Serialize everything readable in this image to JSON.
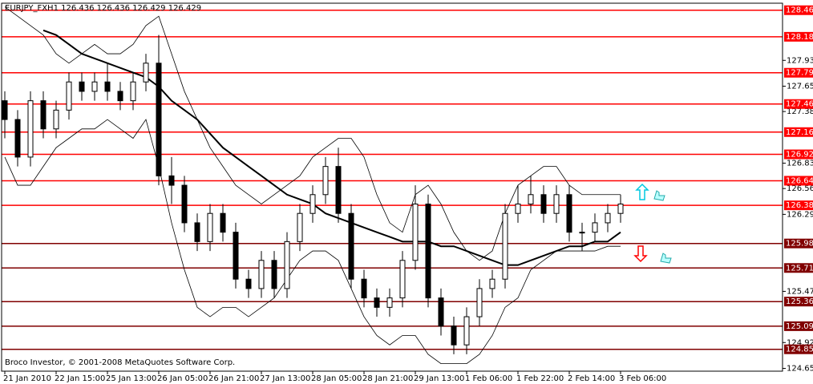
{
  "chart_data": {
    "type": "candlestick",
    "title": "EURJPY_FXH1  126.436 126.436 126.429 126.429",
    "footer": "Broco Investor, © 2001-2008 MetaQuotes Software Corp.",
    "categories": [
      "21 Jan 2010",
      null,
      null,
      null,
      "22 Jan 15:00",
      null,
      null,
      null,
      "25 Jan 13:00",
      null,
      null,
      null,
      "26 Jan 05:00",
      null,
      null,
      null,
      "26 Jan 21:00",
      null,
      null,
      null,
      "27 Jan 13:00",
      null,
      null,
      null,
      "28 Jan 05:00",
      null,
      null,
      null,
      "28 Jan 21:00",
      null,
      null,
      null,
      "29 Jan 13:00",
      null,
      null,
      null,
      "1 Feb 06:00",
      null,
      null,
      null,
      "1 Feb 22:00",
      null,
      null,
      null,
      "2 Feb 14:00",
      null,
      null,
      null,
      "3 Feb 06:00"
    ],
    "open": [
      127.5,
      127.3,
      126.9,
      127.5,
      127.2,
      127.4,
      127.7,
      127.6,
      127.7,
      127.6,
      127.5,
      127.7,
      127.9,
      126.7,
      126.6,
      126.2,
      126.0,
      126.3,
      126.1,
      125.6,
      125.5,
      125.8,
      125.5,
      126.0,
      126.3,
      126.5,
      126.8,
      126.3,
      125.6,
      125.4,
      125.3,
      125.4,
      125.8,
      126.4,
      125.4,
      125.1,
      124.9,
      125.2,
      125.5,
      125.6,
      126.3,
      126.4,
      126.5,
      126.3,
      126.5,
      126.1,
      126.1,
      126.2,
      126.3
    ],
    "high": [
      127.6,
      127.4,
      127.6,
      127.6,
      127.5,
      127.8,
      127.8,
      127.8,
      127.9,
      127.7,
      127.8,
      128.0,
      128.2,
      126.9,
      126.7,
      126.3,
      126.4,
      126.4,
      126.2,
      125.7,
      125.9,
      125.9,
      126.1,
      126.4,
      126.6,
      126.9,
      127.0,
      126.4,
      125.7,
      125.5,
      125.5,
      125.9,
      126.6,
      126.5,
      125.5,
      125.2,
      125.3,
      125.6,
      125.7,
      126.4,
      126.6,
      126.7,
      126.6,
      126.6,
      126.6,
      126.2,
      126.3,
      126.4,
      126.5
    ],
    "low": [
      127.1,
      126.8,
      126.8,
      127.1,
      127.1,
      127.3,
      127.5,
      127.5,
      127.5,
      127.4,
      127.4,
      127.6,
      126.6,
      126.4,
      126.1,
      125.9,
      125.9,
      126.0,
      125.5,
      125.4,
      125.4,
      125.4,
      125.4,
      125.9,
      126.2,
      126.4,
      126.2,
      125.5,
      125.3,
      125.2,
      125.2,
      125.3,
      125.7,
      125.3,
      125.0,
      124.8,
      124.8,
      125.1,
      125.4,
      125.5,
      126.2,
      126.3,
      126.2,
      126.2,
      126.0,
      125.9,
      126.0,
      126.1,
      126.2
    ],
    "close": [
      127.3,
      126.9,
      127.5,
      127.2,
      127.4,
      127.7,
      127.6,
      127.7,
      127.6,
      127.5,
      127.7,
      127.9,
      126.7,
      126.6,
      126.2,
      126.0,
      126.3,
      126.1,
      125.6,
      125.5,
      125.8,
      125.5,
      126.0,
      126.3,
      126.5,
      126.8,
      126.3,
      125.6,
      125.4,
      125.3,
      125.4,
      125.8,
      126.4,
      125.4,
      125.1,
      124.9,
      125.2,
      125.5,
      125.6,
      126.3,
      126.4,
      126.5,
      126.3,
      126.5,
      126.1,
      126.1,
      126.2,
      126.3,
      126.4
    ],
    "candle_color": "#000000",
    "series": [
      {
        "name": "MA",
        "color": "#000000",
        "values": [
          null,
          null,
          null,
          128.25,
          128.2,
          128.1,
          128.0,
          127.95,
          127.9,
          127.85,
          127.8,
          127.75,
          127.65,
          127.5,
          127.4,
          127.3,
          127.15,
          127.0,
          126.9,
          126.8,
          126.7,
          126.6,
          126.5,
          126.45,
          126.4,
          126.3,
          126.25,
          126.2,
          126.15,
          126.1,
          126.05,
          126.0,
          126.0,
          126.0,
          125.95,
          125.95,
          125.9,
          125.85,
          125.8,
          125.75,
          125.75,
          125.8,
          125.85,
          125.9,
          125.95,
          125.95,
          126.0,
          126.0,
          126.1
        ]
      },
      {
        "name": "Upper band",
        "color": "#000000",
        "values": [
          128.5,
          128.4,
          128.3,
          128.2,
          128.0,
          127.9,
          128.0,
          128.1,
          128.0,
          128.0,
          128.1,
          128.3,
          128.4,
          128.0,
          127.6,
          127.3,
          127.0,
          126.8,
          126.6,
          126.5,
          126.4,
          126.5,
          126.6,
          126.7,
          126.9,
          127.0,
          127.1,
          127.1,
          126.9,
          126.5,
          126.2,
          126.1,
          126.5,
          126.6,
          126.4,
          126.1,
          125.9,
          125.8,
          125.9,
          126.3,
          126.6,
          126.7,
          126.8,
          126.8,
          126.6,
          126.5,
          126.5,
          126.5,
          126.5
        ]
      },
      {
        "name": "Lower band",
        "color": "#000000",
        "values": [
          126.9,
          126.6,
          126.6,
          126.8,
          127.0,
          127.1,
          127.2,
          127.2,
          127.3,
          127.2,
          127.1,
          127.3,
          126.8,
          126.2,
          125.7,
          125.3,
          125.2,
          125.3,
          125.3,
          125.2,
          125.3,
          125.4,
          125.6,
          125.8,
          125.9,
          125.9,
          125.8,
          125.5,
          125.2,
          125.0,
          124.9,
          125.0,
          125.0,
          124.8,
          124.7,
          124.7,
          124.7,
          124.8,
          125.0,
          125.3,
          125.4,
          125.7,
          125.8,
          125.9,
          125.9,
          125.9,
          125.9,
          125.95,
          125.95
        ]
      }
    ],
    "levels": [
      {
        "value": 128.464,
        "color": "#ff0000"
      },
      {
        "value": 128.181,
        "color": "#ff0000"
      },
      {
        "value": 127.798,
        "color": "#ff0000"
      },
      {
        "value": 127.465,
        "color": "#ff0000"
      },
      {
        "value": 127.166,
        "color": "#ff0000"
      },
      {
        "value": 126.929,
        "color": "#ff0000"
      },
      {
        "value": 126.648,
        "color": "#ff0000"
      },
      {
        "value": 126.386,
        "color": "#ff0000"
      },
      {
        "value": 125.98,
        "label": "125.980",
        "color": "#800000"
      },
      {
        "value": 125.719,
        "color": "#800000"
      },
      {
        "value": 125.361,
        "color": "#800000"
      },
      {
        "value": 125.099,
        "color": "#800000"
      },
      {
        "value": 124.853,
        "color": "#800000"
      }
    ],
    "ylim": [
      124.62,
      128.53
    ],
    "yticks": [
      {
        "value": 127.93,
        "label": "127.930"
      },
      127.655,
      127.385,
      126.835,
      126.565,
      {
        "value": 126.29,
        "label": "126.290"
      },
      {
        "value": 125.47,
        "label": "125.470"
      },
      124.925,
      {
        "value": 124.65,
        "label": "124.650"
      }
    ]
  }
}
